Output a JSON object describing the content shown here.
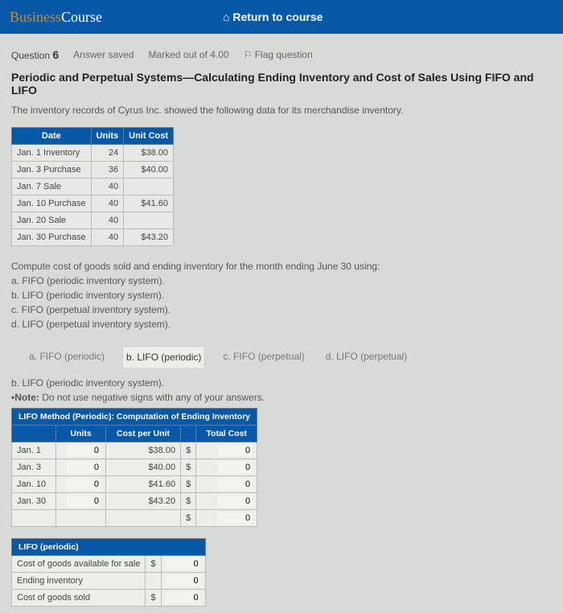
{
  "header": {
    "brand_prefix": "Business",
    "brand_suffix": "Course",
    "return_label": "Return to course"
  },
  "question_bar": {
    "label": "Question",
    "number": "6",
    "status": "Answer saved",
    "marks": "Marked out of 4.00",
    "flag": "Flag question"
  },
  "title": "Periodic and Perpetual Systems—Calculating Ending Inventory and Cost of Sales Using FIFO and LIFO",
  "intro": "The inventory records of Cyrus Inc. showed the following data for its merchandise inventory.",
  "inv_table": {
    "headers": [
      "Date",
      "Units",
      "Unit Cost"
    ],
    "rows": [
      [
        "Jan. 1 Inventory",
        "24",
        "$38.00"
      ],
      [
        "Jan. 3 Purchase",
        "36",
        "$40.00"
      ],
      [
        "Jan. 7 Sale",
        "40",
        ""
      ],
      [
        "Jan. 10 Purchase",
        "40",
        "$41.60"
      ],
      [
        "Jan. 20 Sale",
        "40",
        ""
      ],
      [
        "Jan. 30 Purchase",
        "40",
        "$43.20"
      ]
    ]
  },
  "compute": {
    "lead": "Compute cost of goods sold and ending inventory for the month ending June 30 using:",
    "a": "a. FIFO (periodic inventory system).",
    "b": "b. LIFO (periodic inventory system).",
    "c": "c. FIFO (perpetual inventory system).",
    "d": "d. LIFO (perpetual inventory system)."
  },
  "tabs": {
    "a": "a. FIFO (periodic)",
    "b": "b. LIFO (periodic)",
    "c": "c. FIFO (perpetual)",
    "d": "d. LIFO (perpetual)"
  },
  "subhead": "b. LIFO (periodic inventory system).",
  "note_label": "•Note:",
  "note_text": " Do not use negative signs with any of your answers.",
  "lifo_table": {
    "title": "LIFO Method (Periodic): Computation of Ending Inventory",
    "col_units": "Units",
    "col_cost": "Cost per Unit",
    "col_total": "Total Cost",
    "rows": [
      {
        "date": "Jan. 1",
        "units": "0",
        "cost": "$38.00",
        "total": "0"
      },
      {
        "date": "Jan. 3",
        "units": "0",
        "cost": "$40.00",
        "total": "0"
      },
      {
        "date": "Jan. 10",
        "units": "0",
        "cost": "$41.60",
        "total": "0"
      },
      {
        "date": "Jan. 30",
        "units": "0",
        "cost": "$43.20",
        "total": "0"
      }
    ],
    "footer_total": "0"
  },
  "summary": {
    "header": "LIFO (periodic)",
    "rows": [
      {
        "label": "Cost of goods available for sale",
        "prefix": "$",
        "value": "0"
      },
      {
        "label": "Ending inventory",
        "prefix": "",
        "value": "0"
      },
      {
        "label": "Cost of goods sold",
        "prefix": "$",
        "value": "0"
      }
    ]
  }
}
